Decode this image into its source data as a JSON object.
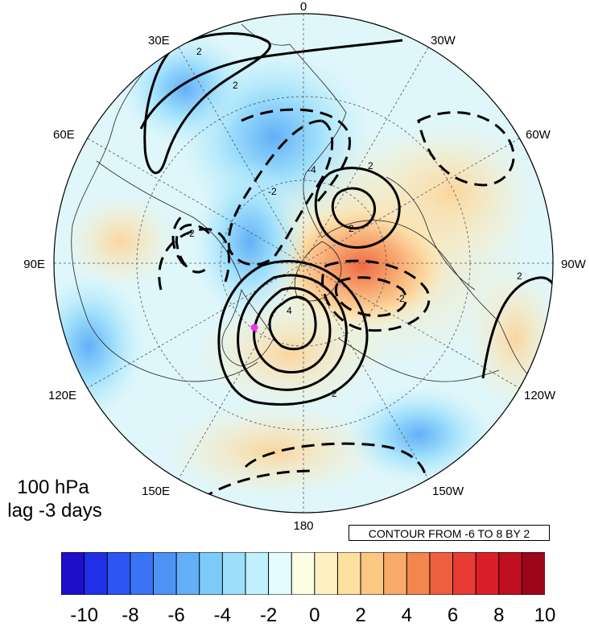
{
  "title": {
    "level": "100 hPa",
    "lag": "lag -3 days"
  },
  "contour_info": "CONTOUR FROM -6 TO 8 BY 2",
  "longitude_labels": {
    "top": "0",
    "bottom": "180",
    "left": "90E",
    "right": "90W",
    "lon30e": "30E",
    "lon30w": "30W",
    "lon60e": "60E",
    "lon60w": "60W",
    "lon120e": "120E",
    "lon120w": "120W",
    "lon150e": "150E",
    "lon150w": "150W"
  },
  "contour_labels": [
    "2",
    "2",
    "2",
    "2",
    "-2",
    "-2",
    "-4",
    "4",
    "2",
    "-2",
    "2"
  ],
  "colorbar": {
    "ticks": [
      "-10",
      "-8",
      "-6",
      "-4",
      "-2",
      "0",
      "2",
      "4",
      "6",
      "8",
      "10"
    ],
    "colors": [
      "#1f0fc8",
      "#1f30e6",
      "#2c55f2",
      "#3a74f5",
      "#4d93f5",
      "#63aff7",
      "#7dcbf9",
      "#9ddefb",
      "#bff0fc",
      "#e3fcfd",
      "#fdfde4",
      "#fdf1c2",
      "#fde0a0",
      "#fbc884",
      "#f8aa6a",
      "#f3854f",
      "#ee5f40",
      "#e83b36",
      "#d91e2a",
      "#c10f22",
      "#9d0519"
    ]
  },
  "marker_color": "#ee33ee"
}
